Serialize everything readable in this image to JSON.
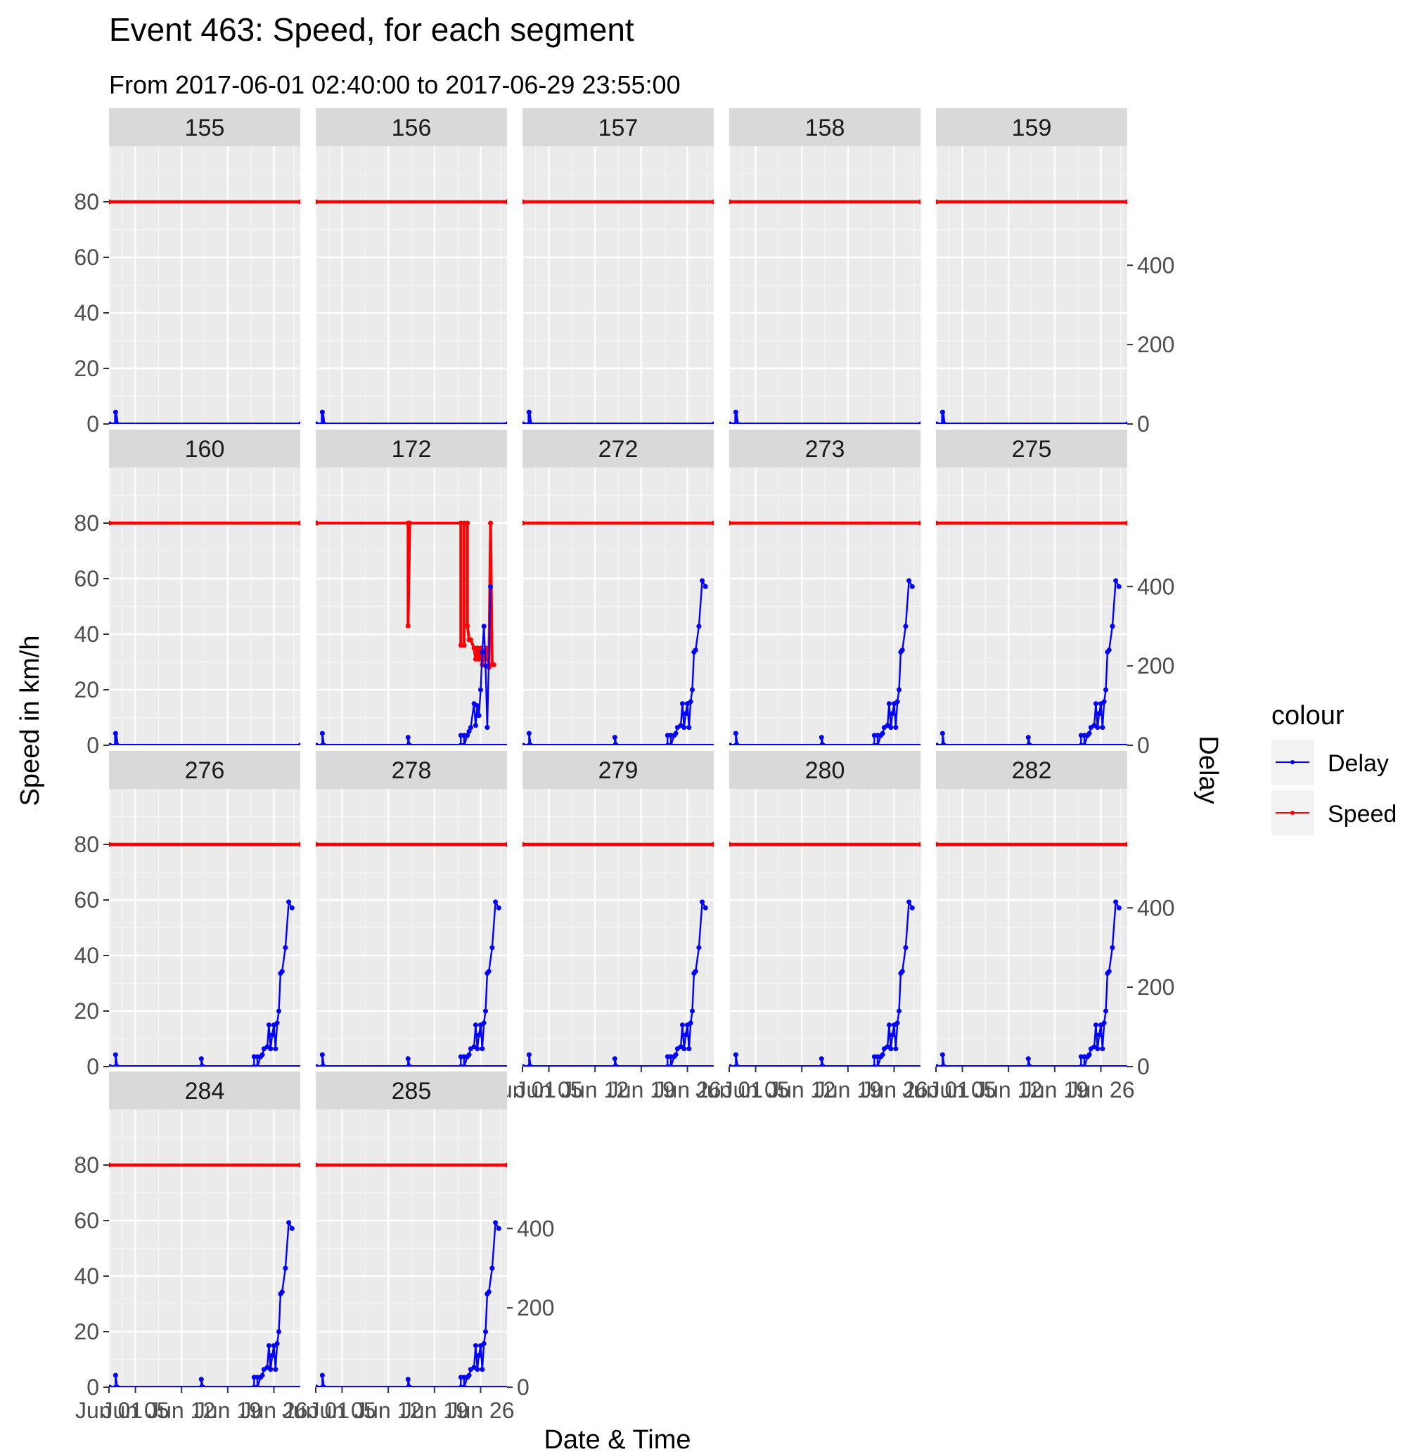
{
  "chart_data": {
    "type": "line",
    "title": "Event 463: Speed, for each segment",
    "subtitle": "From 2017-06-01 02:40:00 to 2017-06-29 23:55:00",
    "xlabel": "Date & Time",
    "ylabel": "Speed in km/h",
    "y2label": "Delay",
    "xlim": [
      "2017-06-01",
      "2017-06-30"
    ],
    "ylim": [
      0,
      80
    ],
    "y2lim": [
      0,
      560
    ],
    "x_ticks": [
      "Jun 01",
      "Jun 05",
      "Jun 12",
      "Jun 19",
      "Jun 26"
    ],
    "y_ticks": [
      0,
      20,
      40,
      60,
      80
    ],
    "y2_ticks": [
      0,
      200,
      400
    ],
    "grid": true,
    "legend": {
      "title": "colour",
      "placement": "right",
      "entries": [
        {
          "name": "Delay",
          "color": "#0000ff"
        },
        {
          "name": "Speed",
          "color": "#ff0000"
        }
      ]
    },
    "series_colors": {
      "Delay": "#0000ff",
      "Speed": "#ff0000"
    },
    "panels": [
      {
        "label": "155",
        "profile": "flat"
      },
      {
        "label": "156",
        "profile": "flat"
      },
      {
        "label": "157",
        "profile": "flat"
      },
      {
        "label": "158",
        "profile": "flat"
      },
      {
        "label": "159",
        "profile": "flat"
      },
      {
        "label": "160",
        "profile": "flat"
      },
      {
        "label": "172",
        "profile": "rising-speed-drop"
      },
      {
        "label": "272",
        "profile": "rising"
      },
      {
        "label": "273",
        "profile": "rising"
      },
      {
        "label": "275",
        "profile": "rising"
      },
      {
        "label": "276",
        "profile": "rising"
      },
      {
        "label": "278",
        "profile": "rising"
      },
      {
        "label": "279",
        "profile": "rising"
      },
      {
        "label": "280",
        "profile": "rising"
      },
      {
        "label": "282",
        "profile": "rising"
      },
      {
        "label": "284",
        "profile": "rising"
      },
      {
        "label": "285",
        "profile": "rising"
      }
    ],
    "speed_default": [
      {
        "x": "2017-06-01",
        "y": 80
      },
      {
        "x": "2017-06-30",
        "y": 80
      }
    ],
    "delay_flat": [
      {
        "x": "2017-06-01 02:40",
        "y": 0
      },
      {
        "x": "2017-06-02 00:00",
        "y": 0
      },
      {
        "x": "2017-06-02 00:00",
        "y": 30
      },
      {
        "x": "2017-06-02 06:00",
        "y": 0
      },
      {
        "x": "2017-06-29 23:55",
        "y": 0
      }
    ],
    "delay_rising": [
      {
        "x": "2017-06-01 02:40",
        "y": 0
      },
      {
        "x": "2017-06-02 00:00",
        "y": 0
      },
      {
        "x": "2017-06-02 00:00",
        "y": 30
      },
      {
        "x": "2017-06-02 06:00",
        "y": 0
      },
      {
        "x": "2017-06-15 00:00",
        "y": 0
      },
      {
        "x": "2017-06-15 00:00",
        "y": 20
      },
      {
        "x": "2017-06-15 06:00",
        "y": 0
      },
      {
        "x": "2017-06-23 00:00",
        "y": 0
      },
      {
        "x": "2017-06-23 00:00",
        "y": 25
      },
      {
        "x": "2017-06-23 12:00",
        "y": 25
      },
      {
        "x": "2017-06-23 12:00",
        "y": 0
      },
      {
        "x": "2017-06-24 00:00",
        "y": 25
      },
      {
        "x": "2017-06-24 06:00",
        "y": 30
      },
      {
        "x": "2017-06-24 12:00",
        "y": 45
      },
      {
        "x": "2017-06-25 00:00",
        "y": 50
      },
      {
        "x": "2017-06-25 06:00",
        "y": 105
      },
      {
        "x": "2017-06-25 12:00",
        "y": 45
      },
      {
        "x": "2017-06-25 18:00",
        "y": 80
      },
      {
        "x": "2017-06-26 00:00",
        "y": 105
      },
      {
        "x": "2017-06-26 06:00",
        "y": 45
      },
      {
        "x": "2017-06-26 12:00",
        "y": 110
      },
      {
        "x": "2017-06-26 18:00",
        "y": 140
      },
      {
        "x": "2017-06-27 00:00",
        "y": 235
      },
      {
        "x": "2017-06-27 06:00",
        "y": 240
      },
      {
        "x": "2017-06-27 18:00",
        "y": 300
      },
      {
        "x": "2017-06-28 06:00",
        "y": 415
      },
      {
        "x": "2017-06-28 18:00",
        "y": 400
      }
    ],
    "speed_172": [
      {
        "x": "2017-06-01 02:40",
        "y": 80
      },
      {
        "x": "2017-06-15 00:00",
        "y": 80
      },
      {
        "x": "2017-06-15 00:00",
        "y": 43
      },
      {
        "x": "2017-06-15 06:00",
        "y": 80
      },
      {
        "x": "2017-06-23 00:00",
        "y": 80
      },
      {
        "x": "2017-06-23 00:00",
        "y": 36
      },
      {
        "x": "2017-06-23 12:00",
        "y": 36
      },
      {
        "x": "2017-06-23 12:00",
        "y": 80
      },
      {
        "x": "2017-06-24 00:00",
        "y": 80
      },
      {
        "x": "2017-06-24 00:00",
        "y": 43
      },
      {
        "x": "2017-06-24 06:00",
        "y": 38
      },
      {
        "x": "2017-06-24 12:00",
        "y": 38
      },
      {
        "x": "2017-06-25 00:00",
        "y": 35
      },
      {
        "x": "2017-06-25 06:00",
        "y": 31
      },
      {
        "x": "2017-06-25 12:00",
        "y": 35
      },
      {
        "x": "2017-06-25 18:00",
        "y": 31
      },
      {
        "x": "2017-06-26 00:00",
        "y": 35
      },
      {
        "x": "2017-06-26 06:00",
        "y": 29
      },
      {
        "x": "2017-06-26 12:00",
        "y": 34
      },
      {
        "x": "2017-06-26 18:00",
        "y": 31
      },
      {
        "x": "2017-06-27 00:00",
        "y": 35
      },
      {
        "x": "2017-06-27 06:00",
        "y": 28
      },
      {
        "x": "2017-06-27 12:00",
        "y": 80
      },
      {
        "x": "2017-06-27 18:00",
        "y": 29
      },
      {
        "x": "2017-06-28 00:00",
        "y": 29
      }
    ],
    "delay_172": [
      {
        "x": "2017-06-01 02:40",
        "y": 0
      },
      {
        "x": "2017-06-02 00:00",
        "y": 0
      },
      {
        "x": "2017-06-02 00:00",
        "y": 30
      },
      {
        "x": "2017-06-02 06:00",
        "y": 0
      },
      {
        "x": "2017-06-15 00:00",
        "y": 0
      },
      {
        "x": "2017-06-15 00:00",
        "y": 20
      },
      {
        "x": "2017-06-15 06:00",
        "y": 0
      },
      {
        "x": "2017-06-23 00:00",
        "y": 0
      },
      {
        "x": "2017-06-23 00:00",
        "y": 25
      },
      {
        "x": "2017-06-23 12:00",
        "y": 25
      },
      {
        "x": "2017-06-23 12:00",
        "y": 0
      },
      {
        "x": "2017-06-24 00:00",
        "y": 25
      },
      {
        "x": "2017-06-24 06:00",
        "y": 35
      },
      {
        "x": "2017-06-24 12:00",
        "y": 45
      },
      {
        "x": "2017-06-25 00:00",
        "y": 105
      },
      {
        "x": "2017-06-25 06:00",
        "y": 50
      },
      {
        "x": "2017-06-25 12:00",
        "y": 100
      },
      {
        "x": "2017-06-25 18:00",
        "y": 75
      },
      {
        "x": "2017-06-26 00:00",
        "y": 140
      },
      {
        "x": "2017-06-26 06:00",
        "y": 235
      },
      {
        "x": "2017-06-26 12:00",
        "y": 300
      },
      {
        "x": "2017-06-26 18:00",
        "y": 200
      },
      {
        "x": "2017-06-27 00:00",
        "y": 45
      },
      {
        "x": "2017-06-27 12:00",
        "y": 400
      }
    ]
  }
}
